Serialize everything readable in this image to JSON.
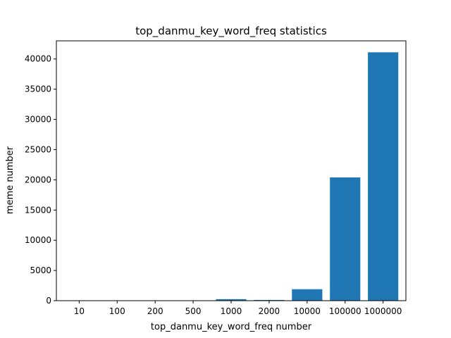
{
  "chart_data": {
    "type": "bar",
    "title": "top_danmu_key_word_freq statistics",
    "xlabel": "top_danmu_key_word_freq number",
    "ylabel": "meme number",
    "categories": [
      "10",
      "100",
      "200",
      "500",
      "1000",
      "2000",
      "10000",
      "100000",
      "1000000"
    ],
    "values": [
      5,
      10,
      15,
      30,
      250,
      120,
      1900,
      20400,
      41100
    ],
    "ylim": [
      0,
      43000
    ],
    "yticks": [
      0,
      5000,
      10000,
      15000,
      20000,
      25000,
      30000,
      35000,
      40000
    ],
    "bar_color": "#1f77b4",
    "grid": false,
    "legend": "none"
  }
}
